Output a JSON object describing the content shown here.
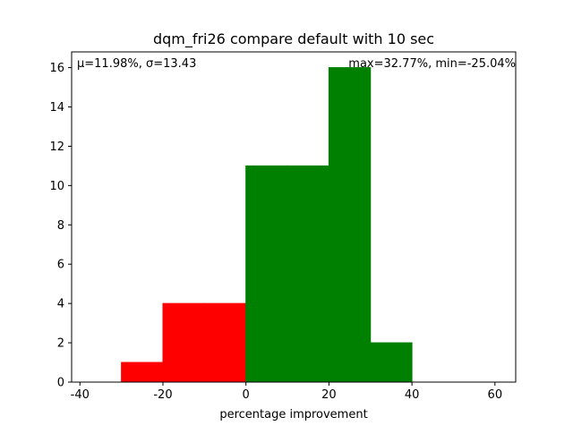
{
  "chart_data": {
    "type": "bar",
    "title": "dqm_fri26 compare default with 10 sec",
    "xlabel": "percentage improvement",
    "ylabel": "",
    "xlim": [
      -42,
      65
    ],
    "ylim": [
      0,
      16.8
    ],
    "xticks": [
      -40,
      -20,
      0,
      20,
      40,
      60
    ],
    "yticks": [
      0,
      2,
      4,
      6,
      8,
      10,
      12,
      14,
      16
    ],
    "annotations": {
      "stats_left": "μ=11.98%, σ=13.43",
      "stats_right": "max=32.77%, min=-25.04%"
    },
    "bins": [
      {
        "x0": -40,
        "x1": -30,
        "count": 0,
        "color": "#ff0000"
      },
      {
        "x0": -30,
        "x1": -20,
        "count": 1,
        "color": "#ff0000"
      },
      {
        "x0": -20,
        "x1": -10,
        "count": 4,
        "color": "#ff0000"
      },
      {
        "x0": -10,
        "x1": 0,
        "count": 4,
        "color": "#ff0000"
      },
      {
        "x0": 0,
        "x1": 10,
        "count": 11,
        "color": "#008000"
      },
      {
        "x0": 10,
        "x1": 20,
        "count": 11,
        "color": "#008000"
      },
      {
        "x0": 20,
        "x1": 30,
        "count": 16,
        "color": "#008000"
      },
      {
        "x0": 30,
        "x1": 40,
        "count": 2,
        "color": "#008000"
      },
      {
        "x0": 40,
        "x1": 50,
        "count": 0,
        "color": "#008000"
      },
      {
        "x0": 50,
        "x1": 60,
        "count": 0,
        "color": "#008000"
      }
    ],
    "grid": false,
    "legend": "none"
  }
}
